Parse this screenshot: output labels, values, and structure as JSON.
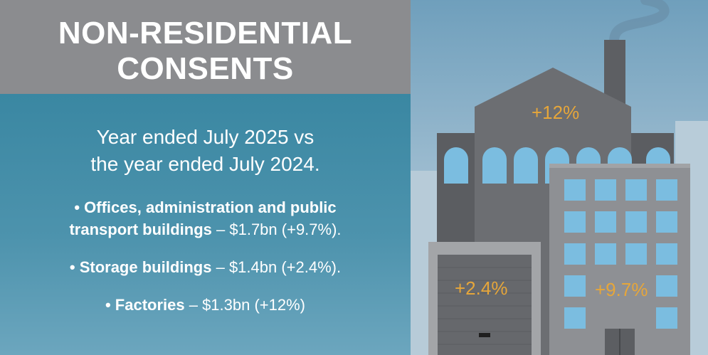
{
  "title": {
    "line1": "NON-RESIDENTIAL",
    "line2": "CONSENTS"
  },
  "intro": {
    "line1": "Year ended July 2025 vs",
    "line2": "the year ended July 2024."
  },
  "bullets": [
    {
      "bold_line1": "• Offices, administration and public",
      "bold_line2": "transport buildings",
      "rest": " – $1.7bn (+9.7%)."
    },
    {
      "bold": "• Storage buildings",
      "rest": " – $1.4bn (+2.4%)."
    },
    {
      "bold": "• Factories",
      "rest": " – $1.3bn (+12%)"
    }
  ],
  "illustration": {
    "factory_label": "+12%",
    "storage_label": "+2.4%",
    "office_label": "+9.7%"
  },
  "colors": {
    "title_band": "#8b8c8f",
    "panel_blue": "#3a87a2",
    "accent_orange": "#e6a63a",
    "window_blue": "#7bbde0"
  }
}
